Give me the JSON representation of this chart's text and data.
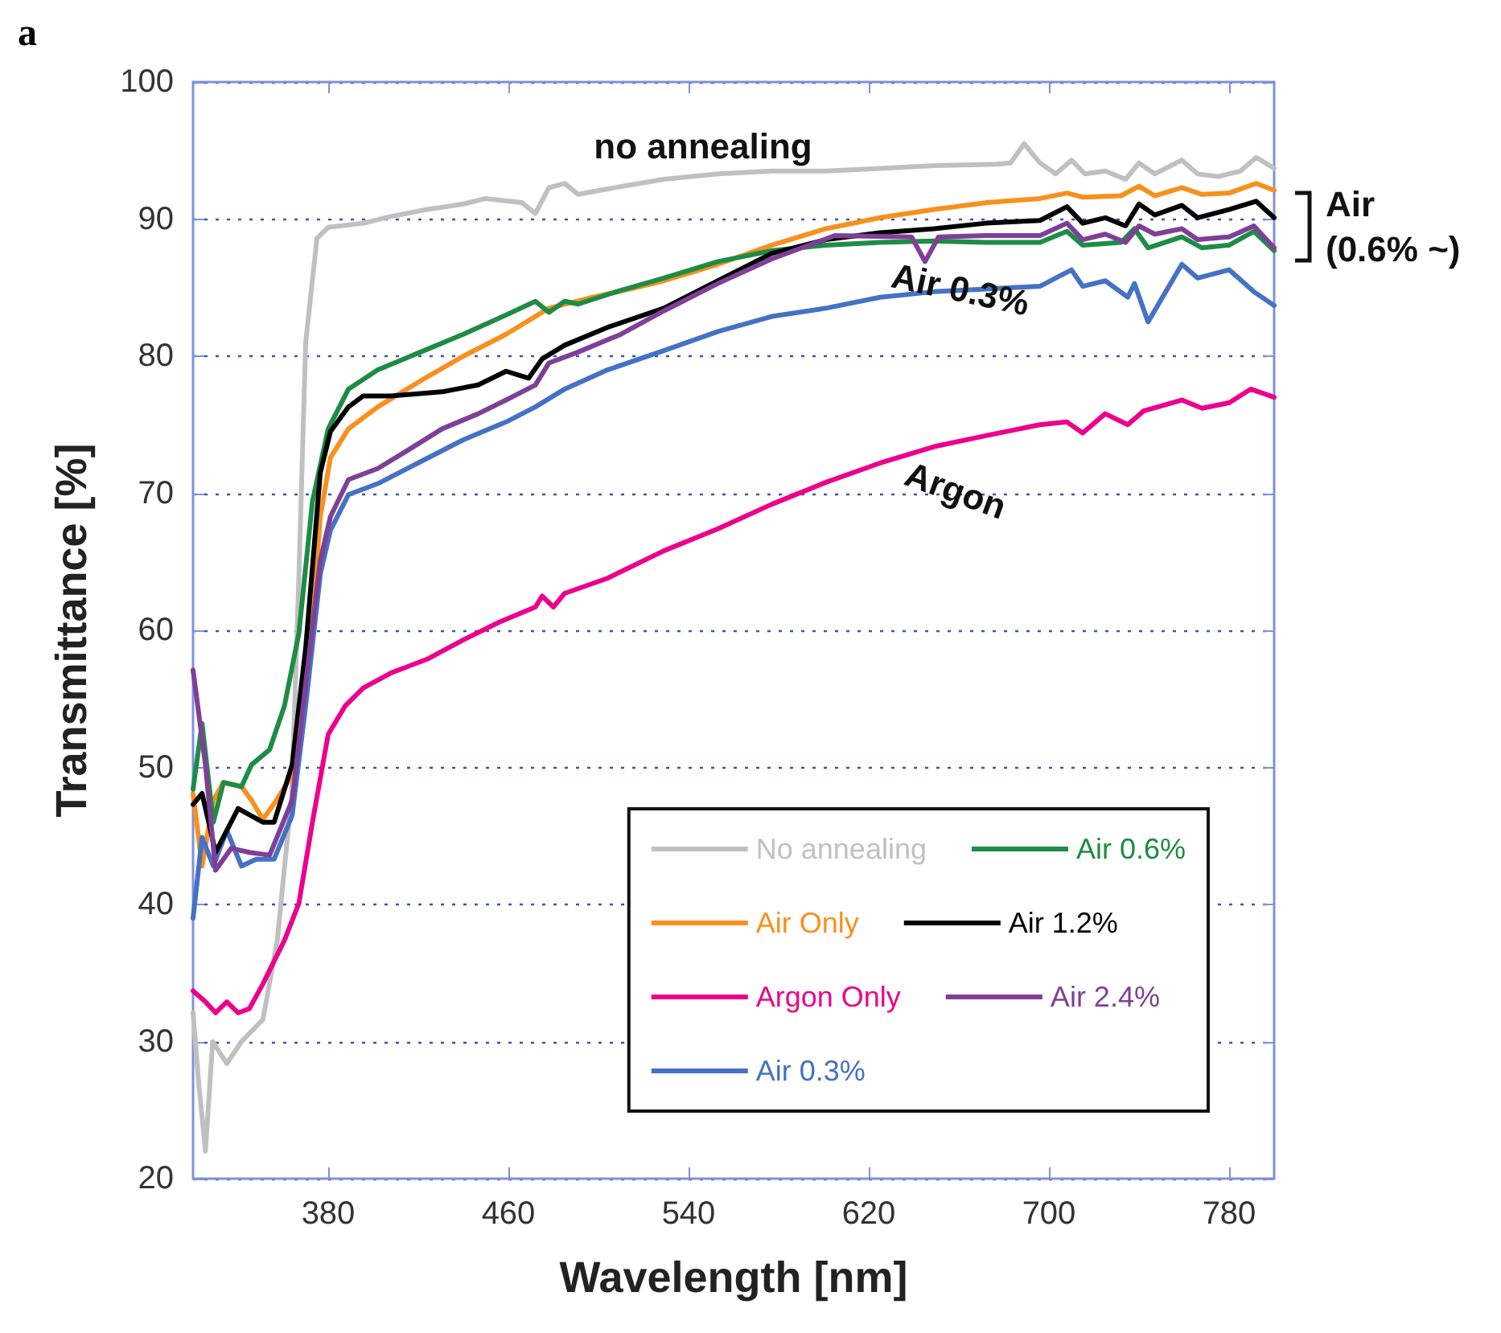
{
  "chart_data": {
    "type": "line",
    "title": "a",
    "xlabel": "Wavelength [nm]",
    "ylabel": "Transmittance [%]",
    "xlim": [
      320,
      800
    ],
    "xticks": [
      380,
      460,
      540,
      620,
      700,
      780
    ],
    "ylim": [
      20,
      100
    ],
    "yticks": [
      20,
      30,
      40,
      50,
      60,
      70,
      80,
      90,
      100
    ],
    "grid": "y",
    "legend": "bottom right",
    "marker": "none",
    "line_style": "solid",
    "annotations": [
      "no annealing",
      "Air 0.3%",
      "Argon",
      "Air (0.6% ~)"
    ],
    "series": [
      {
        "name": "No annealing",
        "color": "#c0c0c0",
        "x": [
          320,
          322.6,
          325.5,
          328.7,
          335,
          341.5,
          351,
          357.4,
          363.8,
          367,
          370,
          375,
          380,
          395.6,
          408,
          424,
          440,
          450,
          466,
          472,
          478,
          485,
          491,
          504,
          529,
          553,
          577,
          601,
          625,
          649,
          677,
          683,
          689,
          696,
          703,
          710,
          716,
          725,
          734,
          740,
          747,
          759,
          766,
          775,
          785,
          792,
          800
        ],
        "values": [
          32.1,
          26.8,
          22,
          30,
          28.4,
          30,
          31.6,
          37.4,
          48,
          64,
          81,
          88.6,
          89.4,
          89.7,
          90.2,
          90.7,
          91.1,
          91.5,
          91.2,
          90.4,
          92.3,
          92.6,
          91.8,
          92.2,
          92.9,
          93.3,
          93.5,
          93.5,
          93.7,
          93.9,
          94,
          94.1,
          95.5,
          94.1,
          93.3,
          94.3,
          93.3,
          93.5,
          92.9,
          94.1,
          93.3,
          94.3,
          93.3,
          93.1,
          93.5,
          94.5,
          93.7
        ]
      },
      {
        "name": "Air Only",
        "color": "#f7901e",
        "x": [
          320,
          324,
          329,
          333.5,
          341.5,
          346,
          351,
          357,
          365,
          372,
          376.5,
          381,
          389,
          402,
          421,
          440,
          459,
          478,
          497.5,
          516.6,
          529,
          553,
          577,
          601,
          625,
          649,
          672.5,
          696,
          708,
          715,
          732,
          740,
          747,
          759,
          768,
          780,
          792,
          800
        ],
        "values": [
          48.1,
          42.8,
          47.6,
          48.9,
          48.6,
          47.6,
          46.2,
          47.6,
          49.7,
          58.7,
          68.3,
          72.6,
          74.7,
          76.3,
          78.2,
          80,
          81.6,
          83.5,
          84.3,
          85,
          85.5,
          86.7,
          88.1,
          89.3,
          90.1,
          90.7,
          91.2,
          91.5,
          91.9,
          91.6,
          91.7,
          92.4,
          91.7,
          92.3,
          91.8,
          91.9,
          92.6,
          92.1
        ]
      },
      {
        "name": "Argon Only",
        "color": "#ec008c",
        "x": [
          320,
          325.5,
          330,
          335,
          340,
          345,
          351,
          360.6,
          367,
          373,
          380,
          387.6,
          395.6,
          408,
          424,
          440,
          456,
          472,
          475,
          480,
          485,
          504,
          529,
          553,
          577,
          601,
          625,
          649,
          672,
          696,
          708,
          715,
          725,
          735,
          742,
          759,
          768,
          780,
          789.6,
          800
        ],
        "values": [
          33.7,
          32.9,
          32.1,
          32.9,
          32.1,
          32.4,
          34.2,
          37.4,
          40.1,
          46,
          52.4,
          54.5,
          55.8,
          56.9,
          57.9,
          59.3,
          60.6,
          61.7,
          62.5,
          61.7,
          62.7,
          63.8,
          65.8,
          67.4,
          69.2,
          70.8,
          72.2,
          73.4,
          74.2,
          75,
          75.2,
          74.4,
          75.8,
          75,
          76,
          76.8,
          76.2,
          76.6,
          77.6,
          77
        ]
      },
      {
        "name": "Air 0.3%",
        "color": "#4472c4",
        "x": [
          320,
          324,
          329,
          335,
          341.5,
          348,
          356,
          364,
          370,
          376.5,
          381,
          389,
          402,
          421,
          440,
          459,
          472,
          485,
          504,
          529,
          553,
          577,
          601,
          625,
          649,
          672,
          696,
          710,
          715,
          725,
          735,
          738,
          744,
          759,
          766,
          780,
          791,
          800
        ],
        "values": [
          39,
          44.9,
          42.8,
          45.4,
          42.8,
          43.3,
          43.3,
          46.5,
          54.5,
          64.1,
          67.3,
          69.9,
          70.7,
          72.3,
          73.9,
          75.2,
          76.3,
          77.6,
          79,
          80.4,
          81.8,
          82.9,
          83.5,
          84.3,
          84.7,
          84.9,
          85.1,
          86.3,
          85.1,
          85.5,
          84.3,
          85.3,
          82.5,
          86.7,
          85.7,
          86.3,
          84.7,
          83.7
        ]
      },
      {
        "name": "Air 0.6%",
        "color": "#1e8c45",
        "x": [
          320,
          324,
          329,
          333.5,
          341.5,
          346,
          354,
          360.6,
          367,
          373,
          380,
          389,
          402,
          421,
          440,
          459,
          472,
          478,
          485,
          491,
          510,
          529,
          553,
          577,
          601,
          625,
          649,
          672,
          696,
          708,
          715,
          732,
          738,
          744,
          759,
          768,
          780,
          791,
          800
        ],
        "values": [
          48.4,
          53.2,
          46,
          48.9,
          48.6,
          50.2,
          51.3,
          54.5,
          59.8,
          69.4,
          74.7,
          77.6,
          79,
          80.3,
          81.6,
          83,
          84,
          83.2,
          84,
          83.8,
          84.8,
          85.7,
          86.9,
          87.7,
          88.1,
          88.3,
          88.4,
          88.3,
          88.3,
          89.1,
          88.1,
          88.3,
          89.3,
          87.9,
          88.7,
          87.9,
          88.1,
          89.1,
          87.7
        ]
      },
      {
        "name": "Air 1.2%",
        "color": "#000000",
        "x": [
          320,
          324,
          330,
          340,
          351,
          356,
          364,
          370,
          376.5,
          381,
          389,
          395.6,
          408,
          430.6,
          446.6,
          459,
          469,
          475,
          485,
          504,
          529,
          553,
          577,
          601,
          625,
          649,
          672,
          696,
          708,
          715,
          725,
          734,
          740,
          747,
          759,
          766,
          780,
          792,
          800
        ],
        "values": [
          47.3,
          48.1,
          43.8,
          47,
          46,
          46,
          50.2,
          58.7,
          71.5,
          74.5,
          76.3,
          77.1,
          77.1,
          77.4,
          77.9,
          78.9,
          78.4,
          79.8,
          80.8,
          82.1,
          83.5,
          85.5,
          87.5,
          88.5,
          89,
          89.3,
          89.7,
          89.9,
          90.9,
          89.7,
          90.1,
          89.5,
          91.1,
          90.3,
          91,
          90.1,
          90.7,
          91.3,
          90.1
        ]
      },
      {
        "name": "Air 2.4%",
        "color": "#7f3f98",
        "x": [
          320,
          325.5,
          330,
          337,
          345,
          354,
          364,
          370,
          376.5,
          381,
          389,
          402,
          415,
          430.6,
          446.6,
          459,
          472,
          478,
          491,
          510,
          529,
          553,
          577,
          605,
          639,
          645,
          651,
          672,
          696,
          708,
          715,
          725,
          734,
          740,
          747,
          759,
          766,
          780,
          791,
          800
        ],
        "values": [
          57.1,
          50.2,
          42.5,
          44.1,
          43.8,
          43.6,
          47.6,
          56.1,
          65.1,
          68.3,
          71,
          71.8,
          73.1,
          74.7,
          75.8,
          76.8,
          77.9,
          79.5,
          80.3,
          81.6,
          83.3,
          85.3,
          87.1,
          88.8,
          88.7,
          86.9,
          88.7,
          88.8,
          88.8,
          89.7,
          88.5,
          88.9,
          88.3,
          89.5,
          88.9,
          89.3,
          88.5,
          88.7,
          89.5,
          87.9
        ]
      }
    ]
  }
}
